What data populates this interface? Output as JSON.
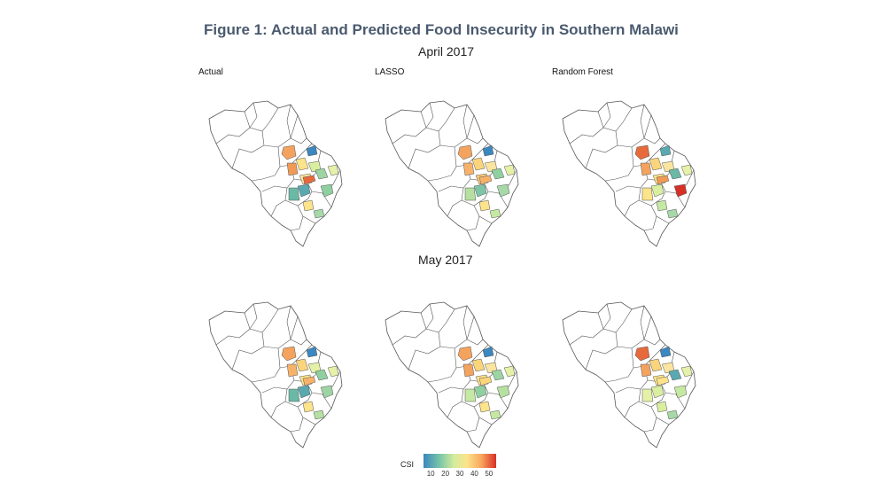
{
  "figure_title": "Figure 1: Actual and Predicted Food Insecurity in Southern Malawi",
  "sections": [
    {
      "title": "April 2017",
      "panels": [
        {
          "label": "Actual"
        },
        {
          "label": "LASSO"
        },
        {
          "label": "Random Forest"
        }
      ]
    },
    {
      "title": "May 2017",
      "panels": [
        {
          "label": ""
        },
        {
          "label": ""
        },
        {
          "label": ""
        }
      ]
    }
  ],
  "legend": {
    "title": "CSI",
    "ticks": [
      "10",
      "20",
      "30",
      "40",
      "50"
    ],
    "tick_values": [
      10,
      20,
      30,
      40,
      50
    ],
    "range": [
      5,
      55
    ],
    "colors": [
      "#3b87bf",
      "#78c4a8",
      "#d3ec9c",
      "#fde38a",
      "#f8a45c",
      "#d73027"
    ]
  },
  "map_style": {
    "boundary_color": "#555555",
    "base_fill": "#ffffff"
  }
}
